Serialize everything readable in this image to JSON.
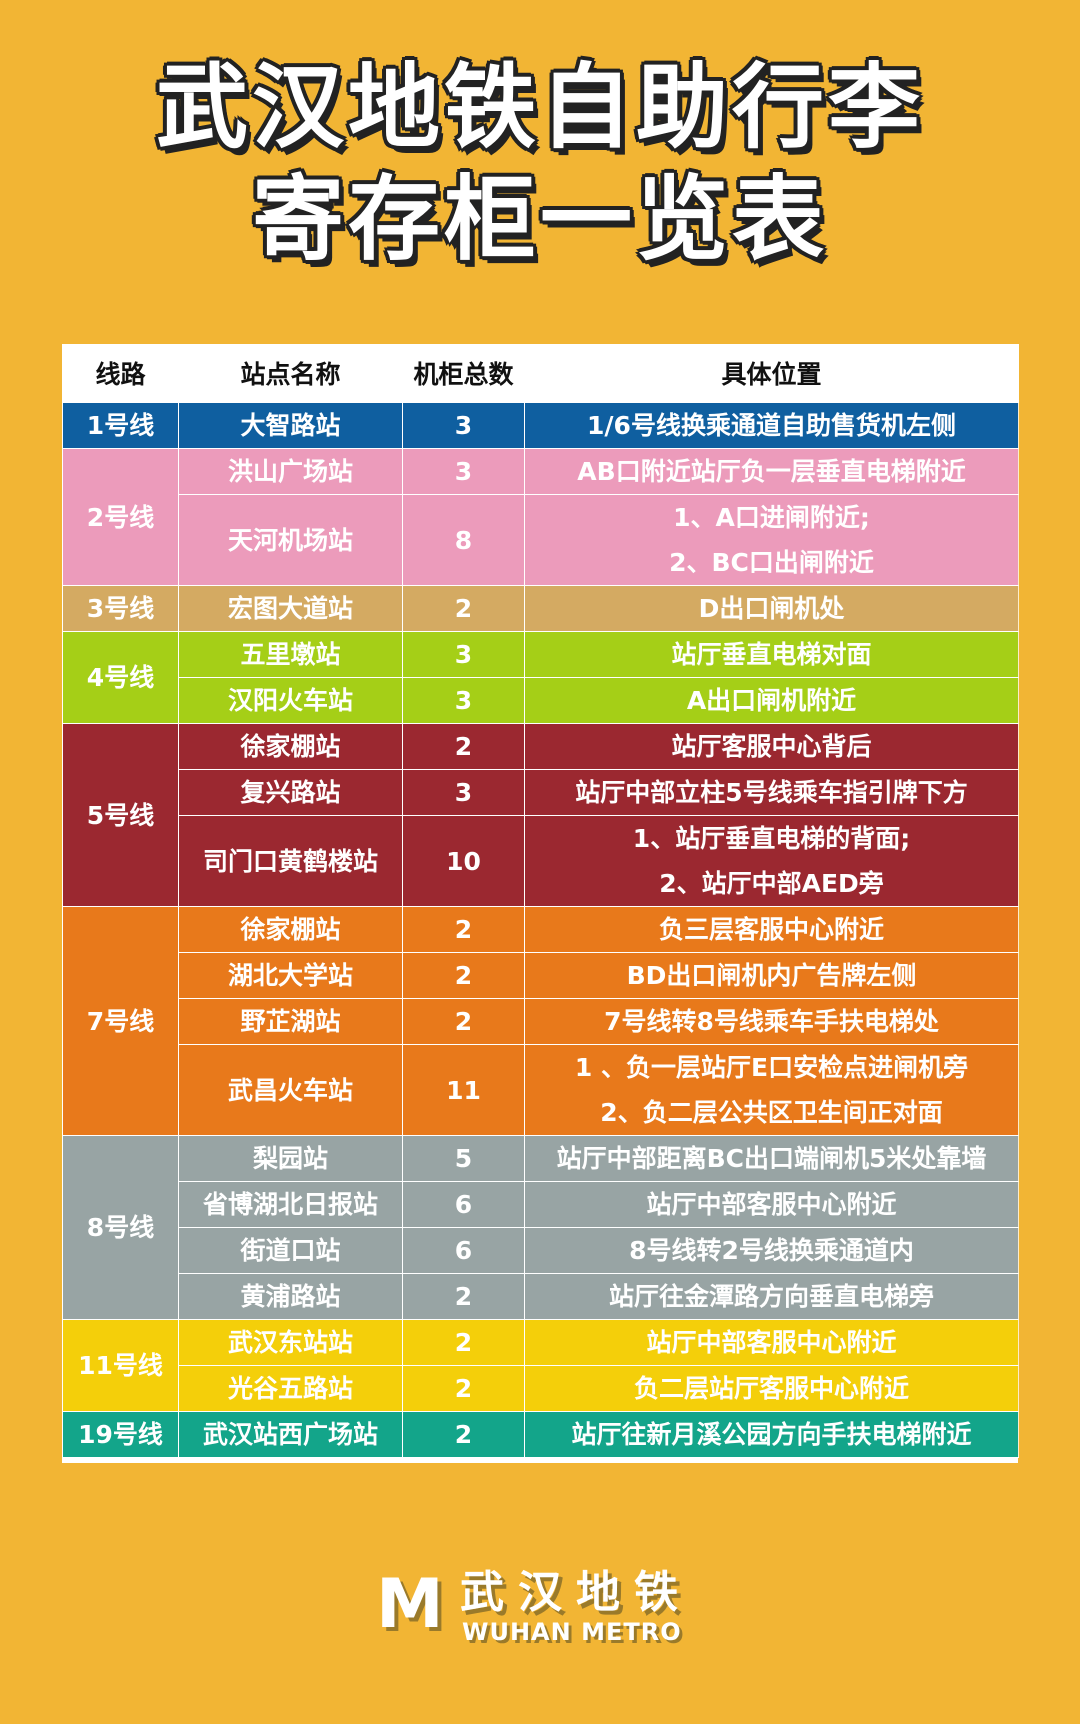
{
  "title": {
    "line1": "武汉地铁自助行李",
    "line2": "寄存柜一览表"
  },
  "table": {
    "headers": [
      "线路",
      "站点名称",
      "机柜总数",
      "具体位置"
    ],
    "lines": [
      {
        "line": "1号线",
        "color": "#0f5fa0",
        "stations": [
          {
            "name": "大智路站",
            "count": "3",
            "location": [
              "1/6号线换乘通道自助售货机左侧"
            ]
          }
        ]
      },
      {
        "line": "2号线",
        "color": "#ec9bbb",
        "stations": [
          {
            "name": "洪山广场站",
            "count": "3",
            "location": [
              "AB口附近站厅负一层垂直电梯附近"
            ]
          },
          {
            "name": "天河机场站",
            "count": "8",
            "location": [
              "1、A口进闸附近;",
              "2、BC口出闸附近"
            ]
          }
        ]
      },
      {
        "line": "3号线",
        "color": "#d4aa62",
        "stations": [
          {
            "name": "宏图大道站",
            "count": "2",
            "location": [
              "D出口闸机处"
            ]
          }
        ]
      },
      {
        "line": "4号线",
        "color": "#a5cf17",
        "stations": [
          {
            "name": "五里墩站",
            "count": "3",
            "location": [
              "站厅垂直电梯对面"
            ]
          },
          {
            "name": "汉阳火车站",
            "count": "3",
            "location": [
              "A出口闸机附近"
            ]
          }
        ]
      },
      {
        "line": "5号线",
        "color": "#9b2830",
        "stations": [
          {
            "name": "徐家棚站",
            "count": "2",
            "location": [
              "站厅客服中心背后"
            ]
          },
          {
            "name": "复兴路站",
            "count": "3",
            "location": [
              "站厅中部立柱5号线乘车指引牌下方"
            ]
          },
          {
            "name": "司门口黄鹤楼站",
            "count": "10",
            "location": [
              "1、站厅垂直电梯的背面;",
              "2、站厅中部AED旁"
            ]
          }
        ]
      },
      {
        "line": "7号线",
        "color": "#e8791b",
        "stations": [
          {
            "name": "徐家棚站",
            "count": "2",
            "location": [
              "负三层客服中心附近"
            ]
          },
          {
            "name": "湖北大学站",
            "count": "2",
            "location": [
              "BD出口闸机内广告牌左侧"
            ]
          },
          {
            "name": "野芷湖站",
            "count": "2",
            "location": [
              "7号线转8号线乘车手扶电梯处"
            ]
          },
          {
            "name": "武昌火车站",
            "count": "11",
            "location": [
              "1 、负一层站厅E口安检点进闸机旁",
              "2、负二层公共区卫生间正对面"
            ]
          }
        ]
      },
      {
        "line": "8号线",
        "color": "#98a4a4",
        "stations": [
          {
            "name": "梨园站",
            "count": "5",
            "location": [
              "站厅中部距离BC出口端闸机5米处靠墙"
            ]
          },
          {
            "name": "省博湖北日报站",
            "count": "6",
            "location": [
              "站厅中部客服中心附近"
            ]
          },
          {
            "name": "街道口站",
            "count": "6",
            "location": [
              "8号线转2号线换乘通道内"
            ]
          },
          {
            "name": "黄浦路站",
            "count": "2",
            "location": [
              "站厅往金潭路方向垂直电梯旁"
            ]
          }
        ]
      },
      {
        "line": "11号线",
        "color": "#f4cf0a",
        "stations": [
          {
            "name": "武汉东站站",
            "count": "2",
            "location": [
              "站厅中部客服中心附近"
            ]
          },
          {
            "name": "光谷五路站",
            "count": "2",
            "location": [
              "负二层站厅客服中心附近"
            ]
          }
        ]
      },
      {
        "line": "19号线",
        "color": "#13a58a",
        "stations": [
          {
            "name": "武汉站西广场站",
            "count": "2",
            "location": [
              "站厅往新月溪公园方向手扶电梯附近"
            ]
          }
        ]
      }
    ]
  },
  "logo": {
    "mark": "M",
    "cn": "武汉地铁",
    "en": "WUHAN METRO"
  },
  "colors": {
    "background": "#f2b534"
  }
}
